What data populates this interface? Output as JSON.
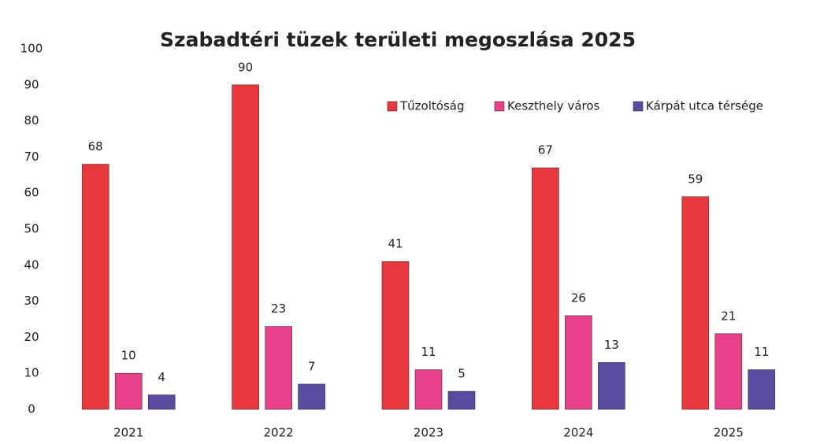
{
  "chart_data": {
    "type": "bar",
    "title": "Szabadtéri tüzek területi megoszlása 2025",
    "categories": [
      "2021",
      "2022",
      "2023",
      "2024",
      "2025"
    ],
    "series": [
      {
        "name": "Tűzoltóság",
        "color": "#e8383d",
        "values": [
          68,
          90,
          41,
          67,
          59
        ]
      },
      {
        "name": "Keszthely város",
        "color": "#e8408a",
        "values": [
          10,
          23,
          11,
          26,
          21
        ]
      },
      {
        "name": "Kárpát utca térsége",
        "color": "#5b4ba0",
        "values": [
          4,
          7,
          5,
          13,
          11
        ]
      }
    ],
    "ylim": [
      0,
      100
    ],
    "yticks": [
      0,
      10,
      20,
      30,
      40,
      50,
      60,
      70,
      80,
      90,
      100
    ],
    "grid": false,
    "legend": "top-right",
    "data_labels": true
  }
}
